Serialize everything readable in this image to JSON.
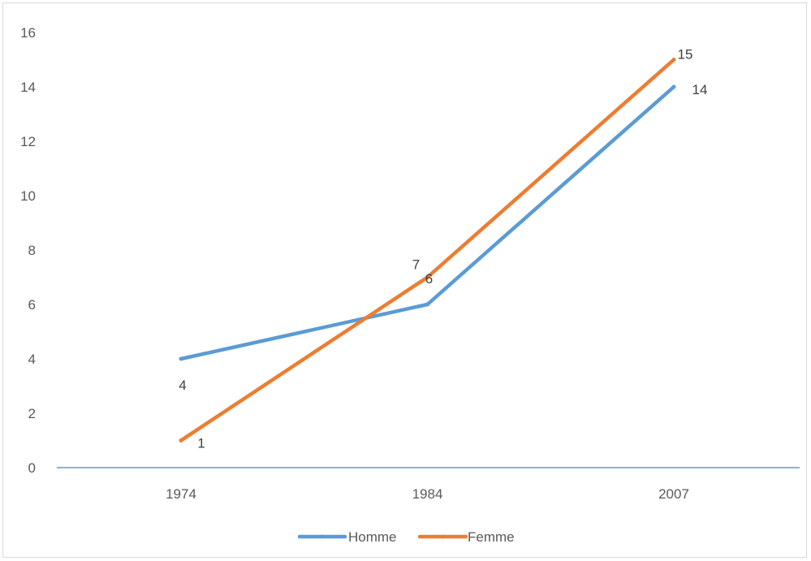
{
  "chart_data": {
    "type": "line",
    "title": "",
    "xlabel": "",
    "ylabel": "",
    "categories": [
      "1974",
      "1984",
      "2007"
    ],
    "ylim": [
      0,
      16
    ],
    "yticks": [
      0,
      2,
      4,
      6,
      8,
      10,
      12,
      14,
      16
    ],
    "grid": false,
    "legend_position": "bottom",
    "data_labels": true,
    "series": [
      {
        "name": "Homme",
        "values": [
          4,
          6,
          14
        ],
        "color": "#5b9bd5"
      },
      {
        "name": "Femme",
        "values": [
          1,
          7,
          15
        ],
        "color": "#ed7d31"
      }
    ],
    "axis_color": "#5b9bd5",
    "frame_color": "#d9d9d9"
  }
}
